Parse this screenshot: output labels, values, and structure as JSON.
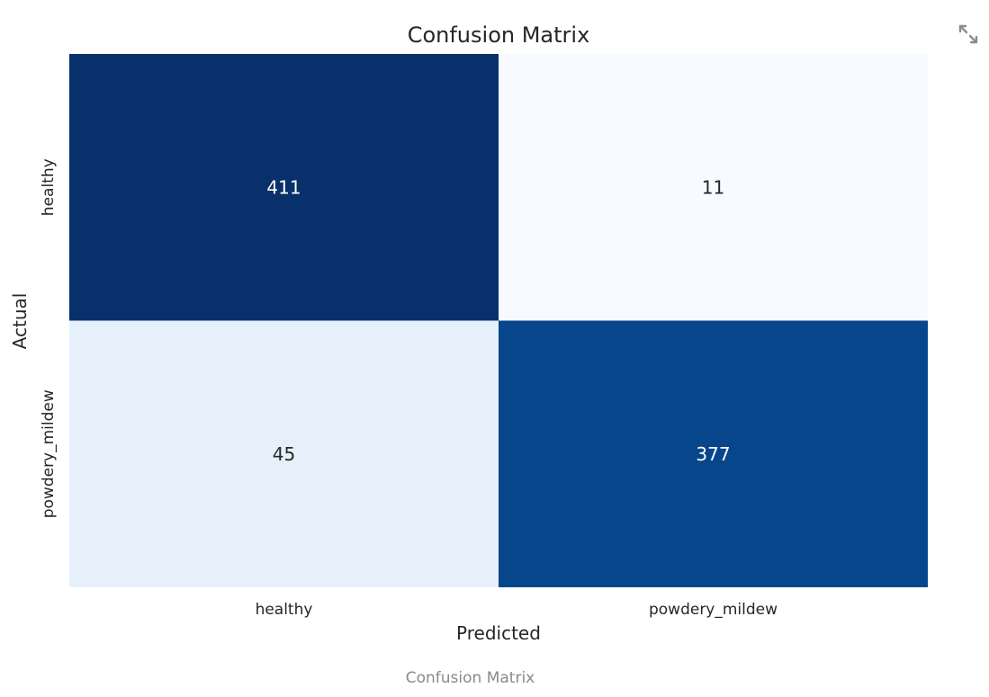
{
  "caption": "Confusion Matrix",
  "toolbar": {
    "expand_icon": "expand-icon"
  },
  "colors": {
    "text": "#262626",
    "caption": "#8a8a8a",
    "icon": "#8c8c8c",
    "cmap_light": "#f7fbff",
    "cmap_dark": "#08306b"
  },
  "chart_data": {
    "type": "heatmap",
    "title": "Confusion Matrix",
    "xlabel": "Predicted",
    "ylabel": "Actual",
    "x_categories": [
      "healthy",
      "powdery_mildew"
    ],
    "y_categories": [
      "healthy",
      "powdery_mildew"
    ],
    "values": [
      [
        411,
        11
      ],
      [
        45,
        377
      ]
    ],
    "colormap": "Blues",
    "colorbar": false,
    "grid": false
  }
}
